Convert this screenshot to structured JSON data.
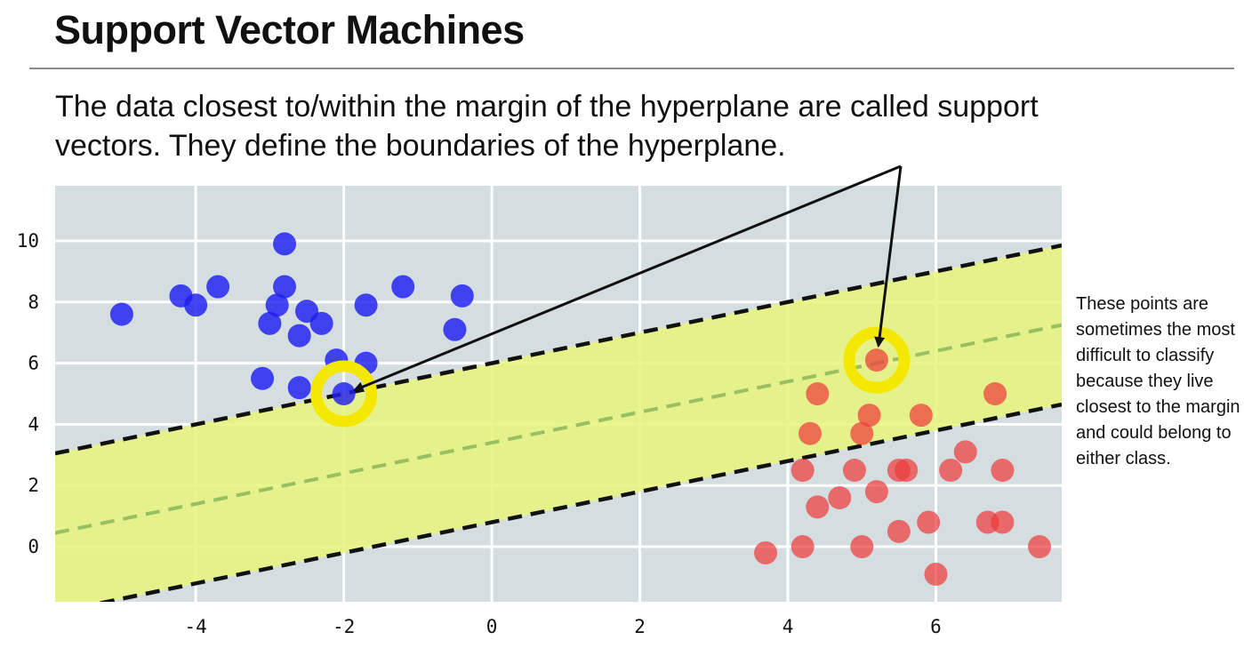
{
  "slide": {
    "title": "Support Vector Machines",
    "subtitle_line1": "The data closest to/within the margin of the hyperplane are called support",
    "subtitle_line2": "vectors. They define the boundaries of the hyperplane.",
    "note": "These points are sometimes the most difficult to classify because they live closest to the margin and could belong to either class."
  },
  "colors": {
    "plot_bg": "#d4dde0",
    "grid": "#ffffff",
    "margin_fill": "#e8f57a",
    "class_a": "#1e1ef0",
    "class_b": "#ee3b3b",
    "highlight_ring": "#f5e800",
    "boundary": "#111111",
    "hyperplane": "#98c060"
  },
  "chart_data": {
    "type": "scatter",
    "xlim": [
      -5.9,
      7.7
    ],
    "ylim": [
      -1.8,
      11.8
    ],
    "x_ticks": [
      -4,
      -2,
      0,
      2,
      4,
      6
    ],
    "y_ticks": [
      0,
      2,
      4,
      6,
      8,
      10
    ],
    "grid": true,
    "hyperplane": {
      "slope": 0.5,
      "intercept": 3.4
    },
    "margin": {
      "upper_intercept": 6.0,
      "lower_intercept": 0.8,
      "fill": true
    },
    "series": [
      {
        "color": "#1e1ef0",
        "points": [
          [
            -5.0,
            7.6
          ],
          [
            -4.2,
            8.2
          ],
          [
            -4.0,
            7.9
          ],
          [
            -3.7,
            8.5
          ],
          [
            -2.8,
            9.9
          ],
          [
            -2.8,
            8.5
          ],
          [
            -2.9,
            7.9
          ],
          [
            -3.0,
            7.3
          ],
          [
            -2.5,
            7.7
          ],
          [
            -2.3,
            7.3
          ],
          [
            -2.6,
            6.9
          ],
          [
            -1.7,
            7.9
          ],
          [
            -1.2,
            8.5
          ],
          [
            -0.4,
            8.2
          ],
          [
            -0.5,
            7.1
          ],
          [
            -2.1,
            6.1
          ],
          [
            -1.7,
            6.0
          ],
          [
            -3.1,
            5.5
          ],
          [
            -2.6,
            5.2
          ],
          [
            -2.0,
            5.0
          ]
        ]
      },
      {
        "color": "#ee3b3b",
        "points": [
          [
            5.2,
            6.1
          ],
          [
            4.4,
            5.0
          ],
          [
            6.8,
            5.0
          ],
          [
            5.1,
            4.3
          ],
          [
            5.8,
            4.3
          ],
          [
            4.3,
            3.7
          ],
          [
            5.0,
            3.7
          ],
          [
            6.4,
            3.1
          ],
          [
            4.2,
            2.5
          ],
          [
            4.9,
            2.5
          ],
          [
            5.5,
            2.5
          ],
          [
            5.6,
            2.5
          ],
          [
            6.2,
            2.5
          ],
          [
            6.9,
            2.5
          ],
          [
            5.2,
            1.8
          ],
          [
            4.7,
            1.6
          ],
          [
            4.4,
            1.3
          ],
          [
            5.9,
            0.8
          ],
          [
            6.7,
            0.8
          ],
          [
            6.9,
            0.8
          ],
          [
            5.5,
            0.5
          ],
          [
            3.7,
            -0.2
          ],
          [
            4.2,
            0.0
          ],
          [
            5.0,
            0.0
          ],
          [
            7.4,
            0.0
          ],
          [
            6.0,
            -0.9
          ]
        ]
      }
    ],
    "highlighted_support_vectors": [
      [
        -2.0,
        5.0
      ],
      [
        5.2,
        6.1
      ]
    ]
  }
}
